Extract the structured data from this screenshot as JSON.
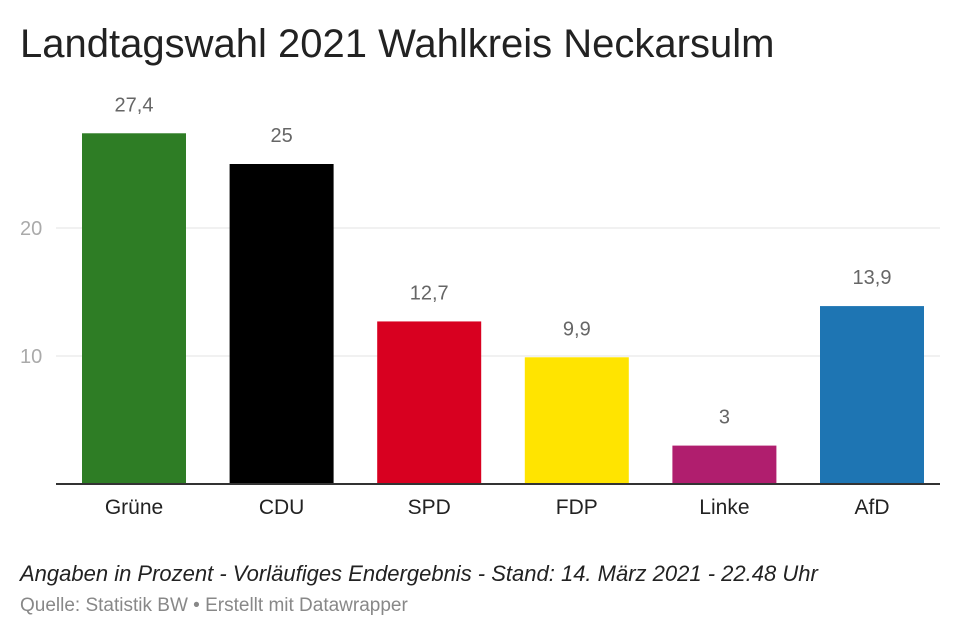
{
  "chart_data": {
    "type": "bar",
    "title": "Landtagswahl 2021 Wahlkreis Neckarsulm",
    "categories": [
      "Grüne",
      "CDU",
      "SPD",
      "FDP",
      "Linke",
      "AfD"
    ],
    "values": [
      27.4,
      25,
      12.7,
      9.9,
      3,
      13.9
    ],
    "value_labels": [
      "27,4",
      "25",
      "12,7",
      "9,9",
      "3",
      "13,9"
    ],
    "colors": [
      "#2e7d25",
      "#000000",
      "#d80020",
      "#ffe400",
      "#b01e6e",
      "#1e75b3"
    ],
    "yticks": [
      10,
      20
    ],
    "ytick_labels": [
      "10",
      "20"
    ],
    "ylim": [
      0,
      27.4
    ],
    "grid": true,
    "xlabel": "",
    "ylabel": ""
  },
  "footer": {
    "note": "Angaben in Prozent - Vorläufiges Endergebnis - Stand: 14. März 2021 - 22.48 Uhr",
    "source": "Quelle: Statistik BW • Erstellt mit Datawrapper"
  }
}
